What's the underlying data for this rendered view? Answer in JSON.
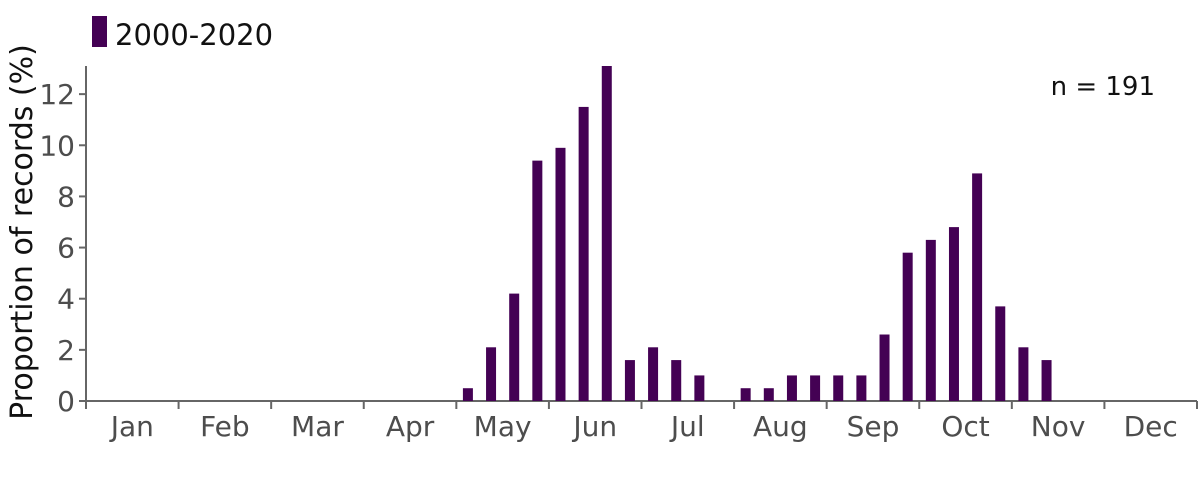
{
  "chart_data": {
    "type": "bar",
    "ylabel": "Proportion of records (%)",
    "xlabel": "",
    "ylim": [
      0,
      13.1
    ],
    "yticks": [
      0,
      2,
      4,
      6,
      8,
      10,
      12
    ],
    "months": [
      "Jan",
      "Feb",
      "Mar",
      "Apr",
      "May",
      "Jun",
      "Jul",
      "Aug",
      "Sep",
      "Oct",
      "Nov",
      "Dec"
    ],
    "periods_per_month": 4,
    "annotation": "n = 191",
    "legend_position": "top-left",
    "grid": false,
    "series": [
      {
        "name": "2000-2020",
        "color": "#440154",
        "values": [
          0,
          0,
          0,
          0,
          0,
          0,
          0,
          0,
          0,
          0,
          0,
          0,
          0,
          0,
          0,
          0,
          0.5,
          2.1,
          4.2,
          9.4,
          9.9,
          11.5,
          13.1,
          1.6,
          2.1,
          1.6,
          1.0,
          0,
          0.5,
          0.5,
          1.0,
          1.0,
          1.0,
          1.0,
          2.6,
          5.8,
          6.3,
          6.8,
          8.9,
          3.7,
          2.1,
          1.6,
          0,
          0,
          0,
          0,
          0,
          0
        ]
      }
    ]
  }
}
